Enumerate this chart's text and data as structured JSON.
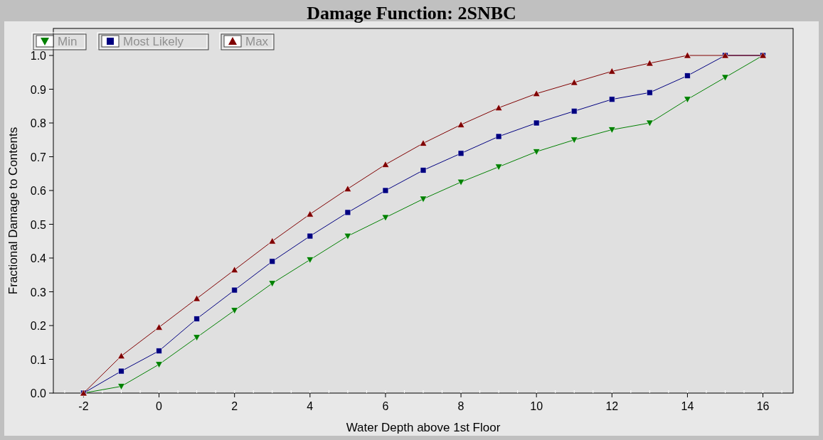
{
  "chart_data": {
    "type": "line",
    "title": "Damage Function: 2SNBC",
    "xlabel": "Water Depth above 1st Floor",
    "ylabel": "Fractional Damage to Contents",
    "x": [
      -2,
      -1,
      0,
      1,
      2,
      3,
      4,
      5,
      6,
      7,
      8,
      9,
      10,
      11,
      12,
      13,
      14,
      15,
      16
    ],
    "series": [
      {
        "name": "Min",
        "color": "#008000",
        "marker": "triangle-down",
        "values": [
          0,
          0.02,
          0.085,
          0.165,
          0.245,
          0.325,
          0.395,
          0.465,
          0.52,
          0.575,
          0.625,
          0.67,
          0.715,
          0.75,
          0.78,
          0.8,
          0.87,
          0.935,
          1.0
        ]
      },
      {
        "name": "Most Likely",
        "color": "#000080",
        "marker": "square",
        "values": [
          0,
          0.065,
          0.125,
          0.22,
          0.305,
          0.39,
          0.465,
          0.535,
          0.6,
          0.66,
          0.71,
          0.76,
          0.8,
          0.835,
          0.87,
          0.89,
          0.94,
          1.0,
          1.0
        ]
      },
      {
        "name": "Max",
        "color": "#800000",
        "marker": "triangle",
        "values": [
          0,
          0.11,
          0.195,
          0.28,
          0.365,
          0.45,
          0.53,
          0.605,
          0.677,
          0.74,
          0.795,
          0.845,
          0.887,
          0.92,
          0.953,
          0.977,
          1.0,
          1.0,
          1.0
        ]
      }
    ],
    "xlim": [
      -2.8,
      16.8
    ],
    "ylim": [
      0,
      1.08
    ],
    "xticks": [
      -2,
      0,
      2,
      4,
      6,
      8,
      10,
      12,
      14,
      16
    ],
    "yticks": [
      {
        "value": 0,
        "label": "0.0"
      },
      0.1,
      0.2,
      0.3,
      0.4,
      0.5,
      0.6,
      0.7,
      0.8,
      0.9,
      {
        "value": 1,
        "label": "1.0"
      }
    ],
    "legend": "top left",
    "grid": false
  }
}
